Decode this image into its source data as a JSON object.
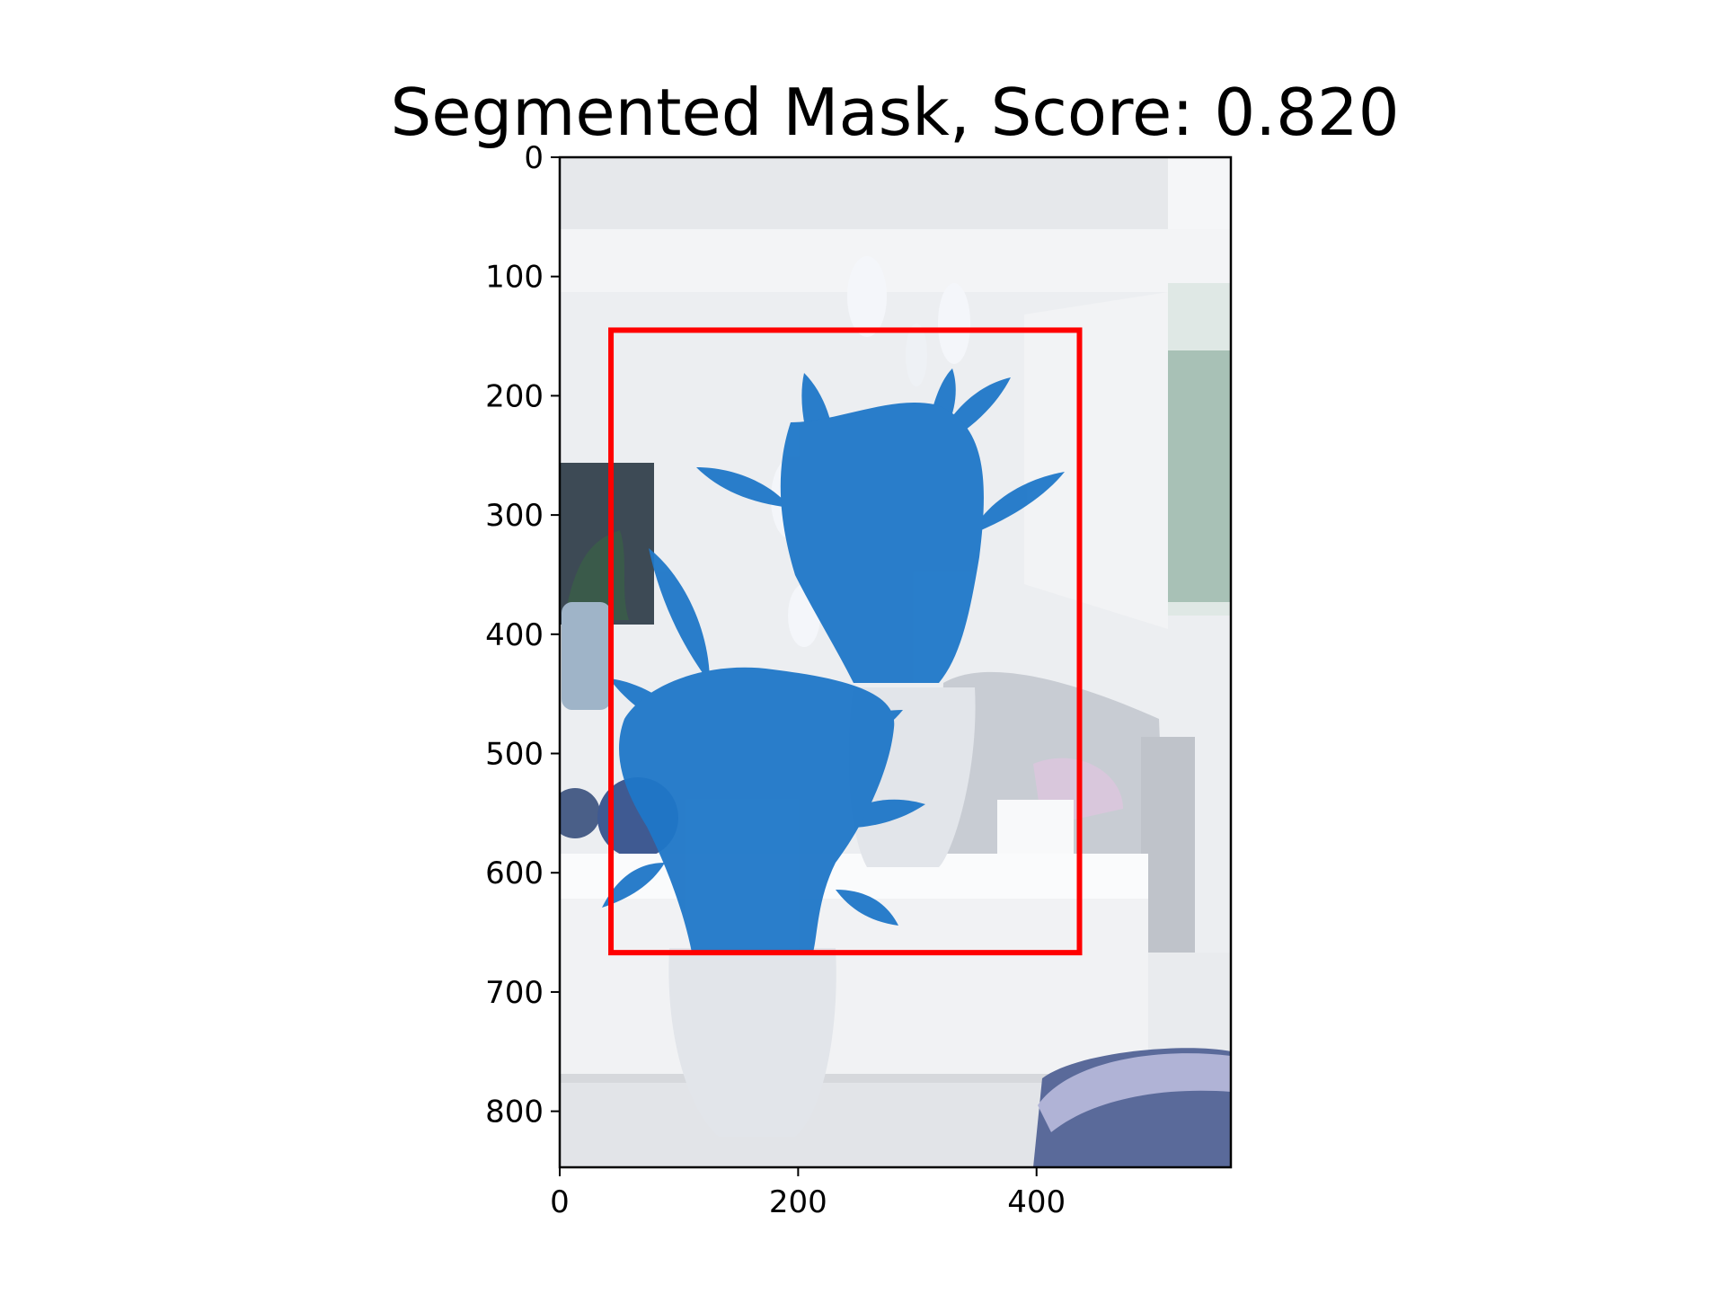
{
  "title": "Segmented Mask, Score: 0.820",
  "colors": {
    "mask": "#1f77c8",
    "box": "#ff0000",
    "wall": "#eef0f2",
    "shelf": "#f7f8f9",
    "sofa": "#c9ccd2",
    "pot": "#e4e6ea",
    "floor": "#e3e5e8"
  },
  "chart_data": {
    "type": "image",
    "title": "Segmented Mask, Score: 0.820",
    "xlim": [
      0,
      563
    ],
    "ylim": [
      847,
      0
    ],
    "xticks": [
      0,
      200,
      400
    ],
    "yticks": [
      0,
      100,
      200,
      300,
      400,
      500,
      600,
      700,
      800
    ],
    "box": {
      "x0": 43,
      "y0": 145,
      "x1": 436,
      "y1": 667
    },
    "score": 0.82
  }
}
